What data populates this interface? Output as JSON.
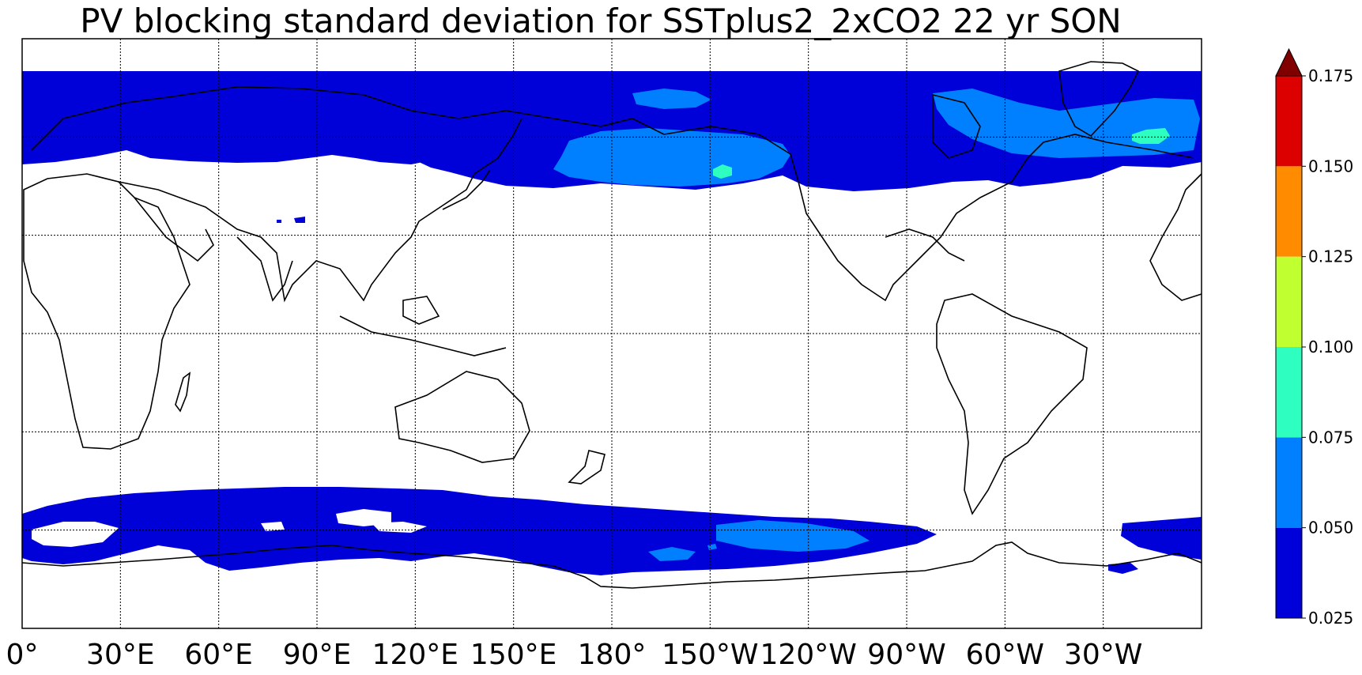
{
  "title": "PV blocking standard deviation for SSTplus2_2xCO2 22 yr SON",
  "chart_data": {
    "type": "map",
    "title": "PV blocking standard deviation for SSTplus2_2xCO2 22 yr SON",
    "x_ticks": [
      "0°",
      "30°E",
      "60°E",
      "90°E",
      "120°E",
      "150°E",
      "180°",
      "150°W",
      "120°W",
      "90°W",
      "60°W",
      "30°W"
    ],
    "colorbar": {
      "levels": [
        0.025,
        0.05,
        0.075,
        0.1,
        0.125,
        0.15,
        0.175
      ],
      "level_labels": [
        "0.025",
        "0.050",
        "0.075",
        "0.100",
        "0.125",
        "0.150",
        "0.175"
      ],
      "colors": [
        "#0000d8",
        "#0080ff",
        "#2effc0",
        "#c0ff30",
        "#ff8c00",
        "#dd0000"
      ],
      "extend_color": "#800000",
      "extend": "max"
    },
    "grid": true
  }
}
